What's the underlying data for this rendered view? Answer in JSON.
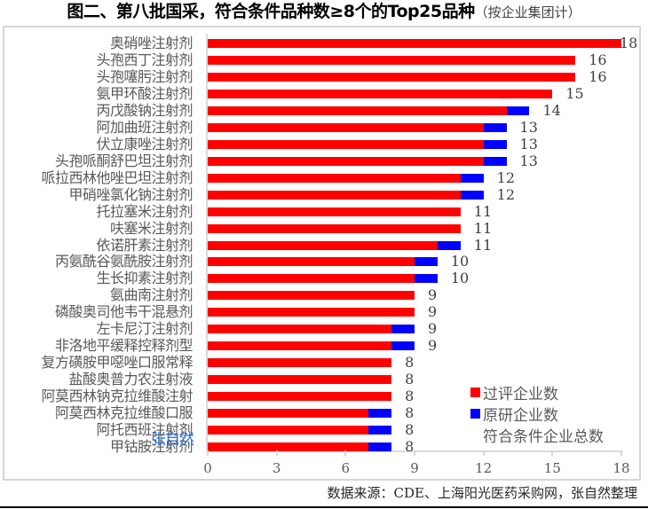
{
  "title": {
    "main": "图二、第八批国采，符合条件品种数≥8个的Top25品种",
    "sub": "（按企业集团计）"
  },
  "colors": {
    "evaluated": "#ff0000",
    "originator": "#0000ff",
    "axis": "#d9d9d9",
    "watermark": "#2e6fc4"
  },
  "watermark": "张自然",
  "source": "数据来源：CDE、上海阳光医药采购网，张自然整理",
  "legend": [
    {
      "label": "过评企业数",
      "color": "#ff0000"
    },
    {
      "label": "原研企业数",
      "color": "#0000ff"
    },
    {
      "label": "符合条件企业总数",
      "color": null
    }
  ],
  "chart_data": {
    "type": "bar",
    "orientation": "horizontal",
    "stacked": true,
    "title": "图二、第八批国采，符合条件品种数≥8个的Top25品种（按企业集团计）",
    "xlabel": "",
    "ylabel": "",
    "xlim": [
      0,
      18
    ],
    "xticks": [
      0,
      3,
      6,
      9,
      12,
      15,
      18
    ],
    "grid": false,
    "legend_position": "lower right",
    "categories": [
      "奥硝唑注射剂",
      "头孢西丁注射剂",
      "头孢噻肟注射剂",
      "氨甲环酸注射剂",
      "丙戊酸钠注射剂",
      "阿加曲班注射剂",
      "伏立康唑注射剂",
      "头孢哌酮舒巴坦注射剂",
      "哌拉西林他唑巴坦注射剂",
      "甲硝唑氯化钠注射剂",
      "托拉塞米注射剂",
      "呋塞米注射剂",
      "依诺肝素注射剂",
      "丙氨酰谷氨酰胺注射剂",
      "生长抑素注射剂",
      "氨曲南注射剂",
      "磷酸奥司他韦干混悬剂",
      "左卡尼汀注射剂",
      "非洛地平缓释控释剂型",
      "复方磺胺甲噁唑口服常释",
      "盐酸奥普力农注射液",
      "阿莫西林钠克拉维酸注射",
      "阿莫西林克拉维酸口服",
      "阿托西班注射剂",
      "甲钴胺注射剂"
    ],
    "series": [
      {
        "name": "过评企业数",
        "color": "#ff0000",
        "values": [
          18,
          16,
          16,
          15,
          13,
          12,
          12,
          12,
          11,
          11,
          11,
          11,
          10,
          9,
          9,
          9,
          9,
          8,
          8,
          8,
          8,
          8,
          7,
          7,
          7
        ]
      },
      {
        "name": "原研企业数",
        "color": "#0000ff",
        "values": [
          0,
          0,
          0,
          0,
          1,
          1,
          1,
          1,
          1,
          1,
          0,
          0,
          1,
          1,
          1,
          0,
          0,
          1,
          1,
          0,
          0,
          0,
          1,
          1,
          1
        ]
      },
      {
        "name": "符合条件企业总数",
        "color": null,
        "values": [
          18,
          16,
          16,
          15,
          14,
          13,
          13,
          13,
          12,
          12,
          11,
          11,
          11,
          10,
          10,
          9,
          9,
          9,
          9,
          8,
          8,
          8,
          8,
          8,
          8
        ]
      }
    ]
  }
}
